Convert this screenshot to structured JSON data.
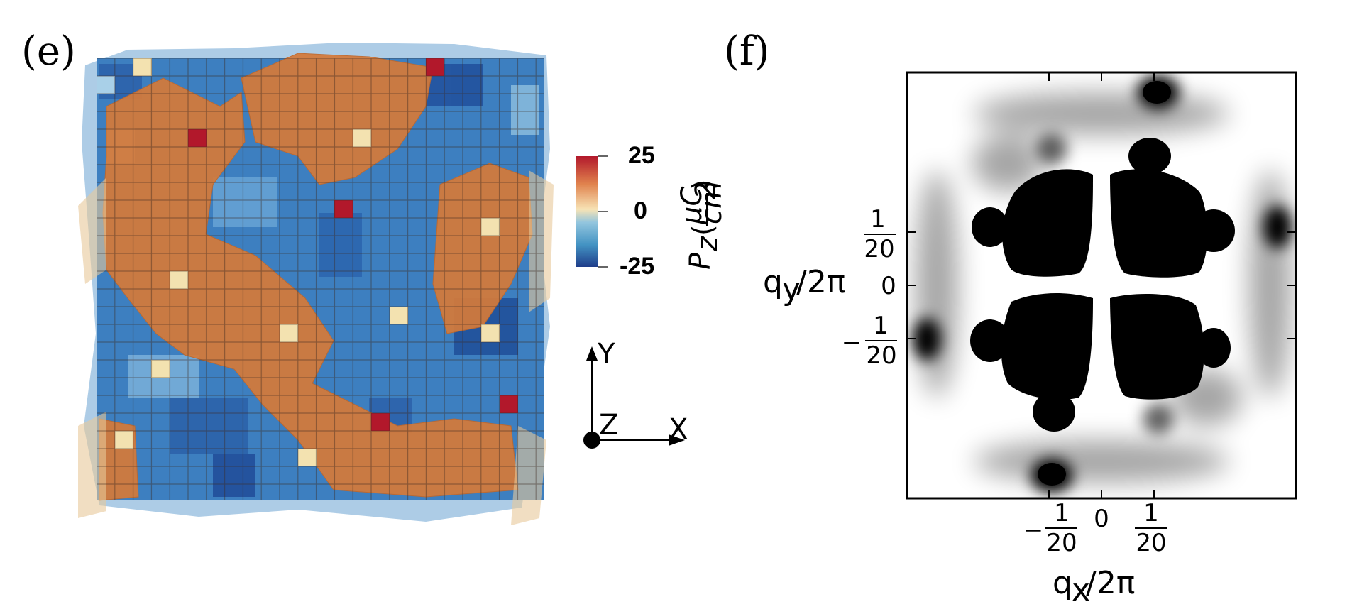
{
  "panel_e": {
    "label": "(e)",
    "colorbar": {
      "quantity": "P",
      "quantity_sub": "z",
      "unit_num": "μC",
      "unit_den": "cm",
      "unit_den_sup": "2",
      "tick_max": "25",
      "tick_mid": "0",
      "tick_min": "-25",
      "colors": [
        "#b2182b",
        "#d6604d",
        "#f4a582",
        "#f7e3b5",
        "#92c5de",
        "#4393c3",
        "#2166ac"
      ]
    },
    "axes_triad": {
      "y": "Y",
      "z": "Z",
      "x": "X"
    },
    "domain_colors": {
      "positive": "#d47a3a",
      "negative": "#3d7fc0"
    }
  },
  "panel_f": {
    "label": "(f)",
    "x_label": "q",
    "x_label_sub": "x",
    "x_label_tail": "/2π",
    "y_label": "q",
    "y_label_sub": "y",
    "y_label_tail": "/2π",
    "ticks": {
      "neg_sign": "−",
      "num": "1",
      "den": "20",
      "zero": "0"
    }
  }
}
